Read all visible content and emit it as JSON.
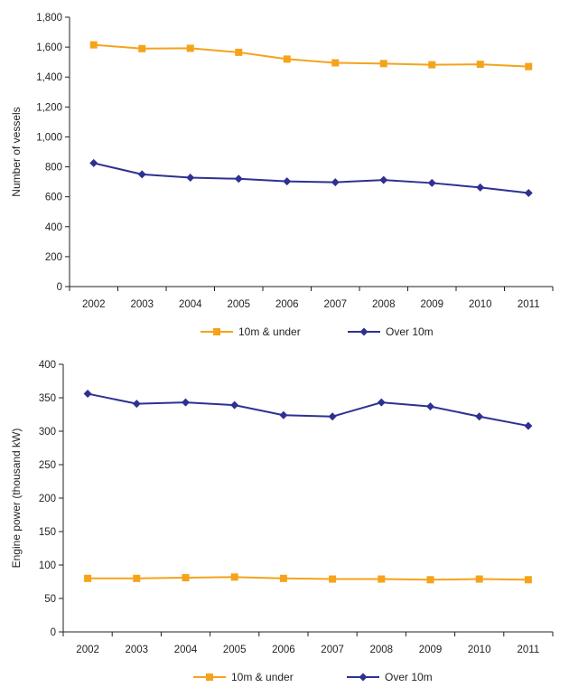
{
  "chart_data": [
    {
      "type": "line",
      "title": "",
      "xlabel": "",
      "ylabel": "Number of vessels",
      "categories": [
        "2002",
        "2003",
        "2004",
        "2005",
        "2006",
        "2007",
        "2008",
        "2009",
        "2010",
        "2011"
      ],
      "ylim": [
        0,
        1800
      ],
      "yticks": [
        0,
        200,
        400,
        600,
        800,
        1000,
        1200,
        1400,
        1600,
        1800
      ],
      "ytick_labels": [
        "0",
        "200",
        "400",
        "600",
        "800",
        "1,000",
        "1,200",
        "1,400",
        "1,600",
        "1,800"
      ],
      "grid": false,
      "legend_position": "bottom",
      "series": [
        {
          "name": "10m & under",
          "color": "#f5a31a",
          "marker": "square",
          "values": [
            1615,
            1590,
            1592,
            1565,
            1520,
            1495,
            1490,
            1482,
            1485,
            1470
          ]
        },
        {
          "name": "Over 10m",
          "color": "#2e3192",
          "marker": "diamond",
          "values": [
            825,
            750,
            728,
            720,
            703,
            697,
            712,
            692,
            662,
            625
          ]
        }
      ]
    },
    {
      "type": "line",
      "title": "",
      "xlabel": "",
      "ylabel": "Engine power (thousand kW)",
      "categories": [
        "2002",
        "2003",
        "2004",
        "2005",
        "2006",
        "2007",
        "2008",
        "2009",
        "2010",
        "2011"
      ],
      "ylim": [
        0,
        400
      ],
      "yticks": [
        0,
        50,
        100,
        150,
        200,
        250,
        300,
        350,
        400
      ],
      "ytick_labels": [
        "0",
        "50",
        "100",
        "150",
        "200",
        "250",
        "300",
        "350",
        "400"
      ],
      "grid": false,
      "legend_position": "bottom",
      "series": [
        {
          "name": "10m & under",
          "color": "#f5a31a",
          "marker": "square",
          "values": [
            80,
            80,
            81,
            82,
            80,
            79,
            79,
            78,
            79,
            78
          ]
        },
        {
          "name": "Over 10m",
          "color": "#2e3192",
          "marker": "diamond",
          "values": [
            356,
            341,
            343,
            339,
            324,
            322,
            343,
            337,
            322,
            308
          ]
        }
      ]
    }
  ]
}
